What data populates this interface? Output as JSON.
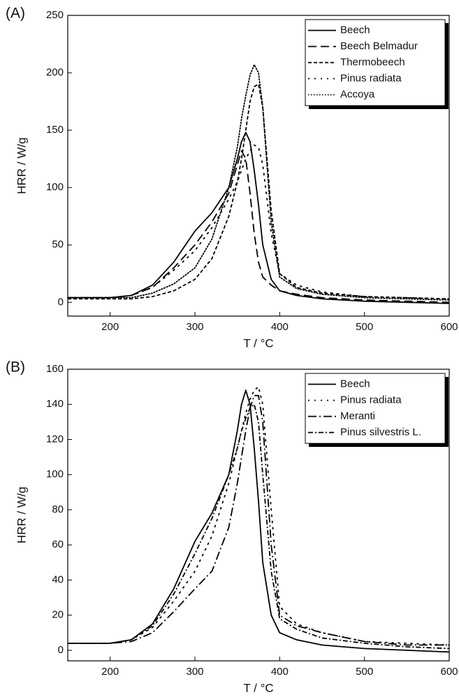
{
  "chart_data": [
    {
      "type": "line",
      "label": "(A)",
      "xlabel": "T / °C",
      "ylabel": "HRR / W/g",
      "xlim": [
        150,
        600
      ],
      "xticks": [
        200,
        300,
        400,
        500,
        600
      ],
      "ylim": [
        -12,
        250
      ],
      "yticks": [
        0,
        50,
        100,
        150,
        200,
        250
      ],
      "legend": "upper right",
      "x": [
        150,
        200,
        225,
        250,
        275,
        300,
        320,
        340,
        350,
        355,
        360,
        365,
        370,
        375,
        380,
        390,
        400,
        420,
        450,
        500,
        550,
        600
      ],
      "series": [
        {
          "name": "Beech",
          "color": "#000000",
          "dash": "solid",
          "values": [
            4,
            4,
            6,
            15,
            35,
            62,
            78,
            100,
            125,
            140,
            148,
            140,
            115,
            85,
            50,
            20,
            10,
            6,
            3,
            1,
            0,
            -1
          ]
        },
        {
          "name": "Beech Belmadur",
          "color": "#000000",
          "dash": "long-dash",
          "values": [
            4,
            4,
            6,
            13,
            30,
            50,
            70,
            95,
            120,
            132,
            125,
            95,
            60,
            35,
            22,
            15,
            10,
            7,
            4,
            2,
            1,
            0
          ]
        },
        {
          "name": "Thermobeech",
          "color": "#000000",
          "dash": "short-dash",
          "values": [
            3,
            3,
            3,
            5,
            10,
            20,
            38,
            75,
            105,
            125,
            150,
            175,
            188,
            190,
            170,
            80,
            25,
            13,
            8,
            5,
            4,
            3
          ]
        },
        {
          "name": "Pinus radiata",
          "color": "#000000",
          "dash": "sparse-dot",
          "values": [
            4,
            4,
            6,
            13,
            28,
            45,
            65,
            90,
            105,
            115,
            125,
            132,
            137,
            135,
            120,
            60,
            25,
            15,
            9,
            5,
            4,
            3
          ]
        },
        {
          "name": "Accoya",
          "color": "#000000",
          "dash": "dot",
          "values": [
            4,
            4,
            4,
            8,
            16,
            30,
            55,
            100,
            135,
            160,
            180,
            198,
            207,
            200,
            170,
            70,
            22,
            12,
            7,
            4,
            3,
            2
          ]
        }
      ]
    },
    {
      "type": "line",
      "label": "(B)",
      "xlabel": "T / °C",
      "ylabel": "HRR / W/g",
      "xlim": [
        150,
        600
      ],
      "xticks": [
        200,
        300,
        400,
        500,
        600
      ],
      "ylim": [
        -6,
        160
      ],
      "yticks": [
        0,
        20,
        40,
        60,
        80,
        100,
        120,
        140,
        160
      ],
      "legend": "upper right",
      "x": [
        150,
        200,
        225,
        250,
        275,
        300,
        320,
        340,
        350,
        355,
        360,
        365,
        370,
        375,
        380,
        390,
        400,
        420,
        450,
        500,
        550,
        600
      ],
      "series": [
        {
          "name": "Beech",
          "color": "#000000",
          "dash": "solid",
          "values": [
            4,
            4,
            6,
            15,
            35,
            62,
            78,
            100,
            125,
            140,
            148,
            140,
            115,
            85,
            50,
            20,
            10,
            6,
            3,
            1,
            0,
            -1
          ]
        },
        {
          "name": "Pinus radiata",
          "color": "#000000",
          "dash": "sparse-dot",
          "values": [
            4,
            4,
            6,
            13,
            28,
            45,
            65,
            95,
            115,
            125,
            135,
            143,
            148,
            150,
            140,
            80,
            25,
            15,
            10,
            5,
            4,
            3
          ]
        },
        {
          "name": "Meranti",
          "color": "#000000",
          "dash": "long-dash-dot",
          "values": [
            4,
            4,
            5,
            10,
            22,
            35,
            45,
            70,
            95,
            110,
            125,
            138,
            145,
            145,
            130,
            60,
            20,
            14,
            10,
            5,
            3,
            3
          ]
        },
        {
          "name": "Pinus silvestris L.",
          "color": "#000000",
          "dash": "dash-dot",
          "values": [
            4,
            4,
            6,
            14,
            32,
            55,
            75,
            100,
            115,
            125,
            132,
            138,
            140,
            130,
            100,
            45,
            18,
            12,
            7,
            4,
            2,
            1
          ]
        }
      ]
    }
  ]
}
